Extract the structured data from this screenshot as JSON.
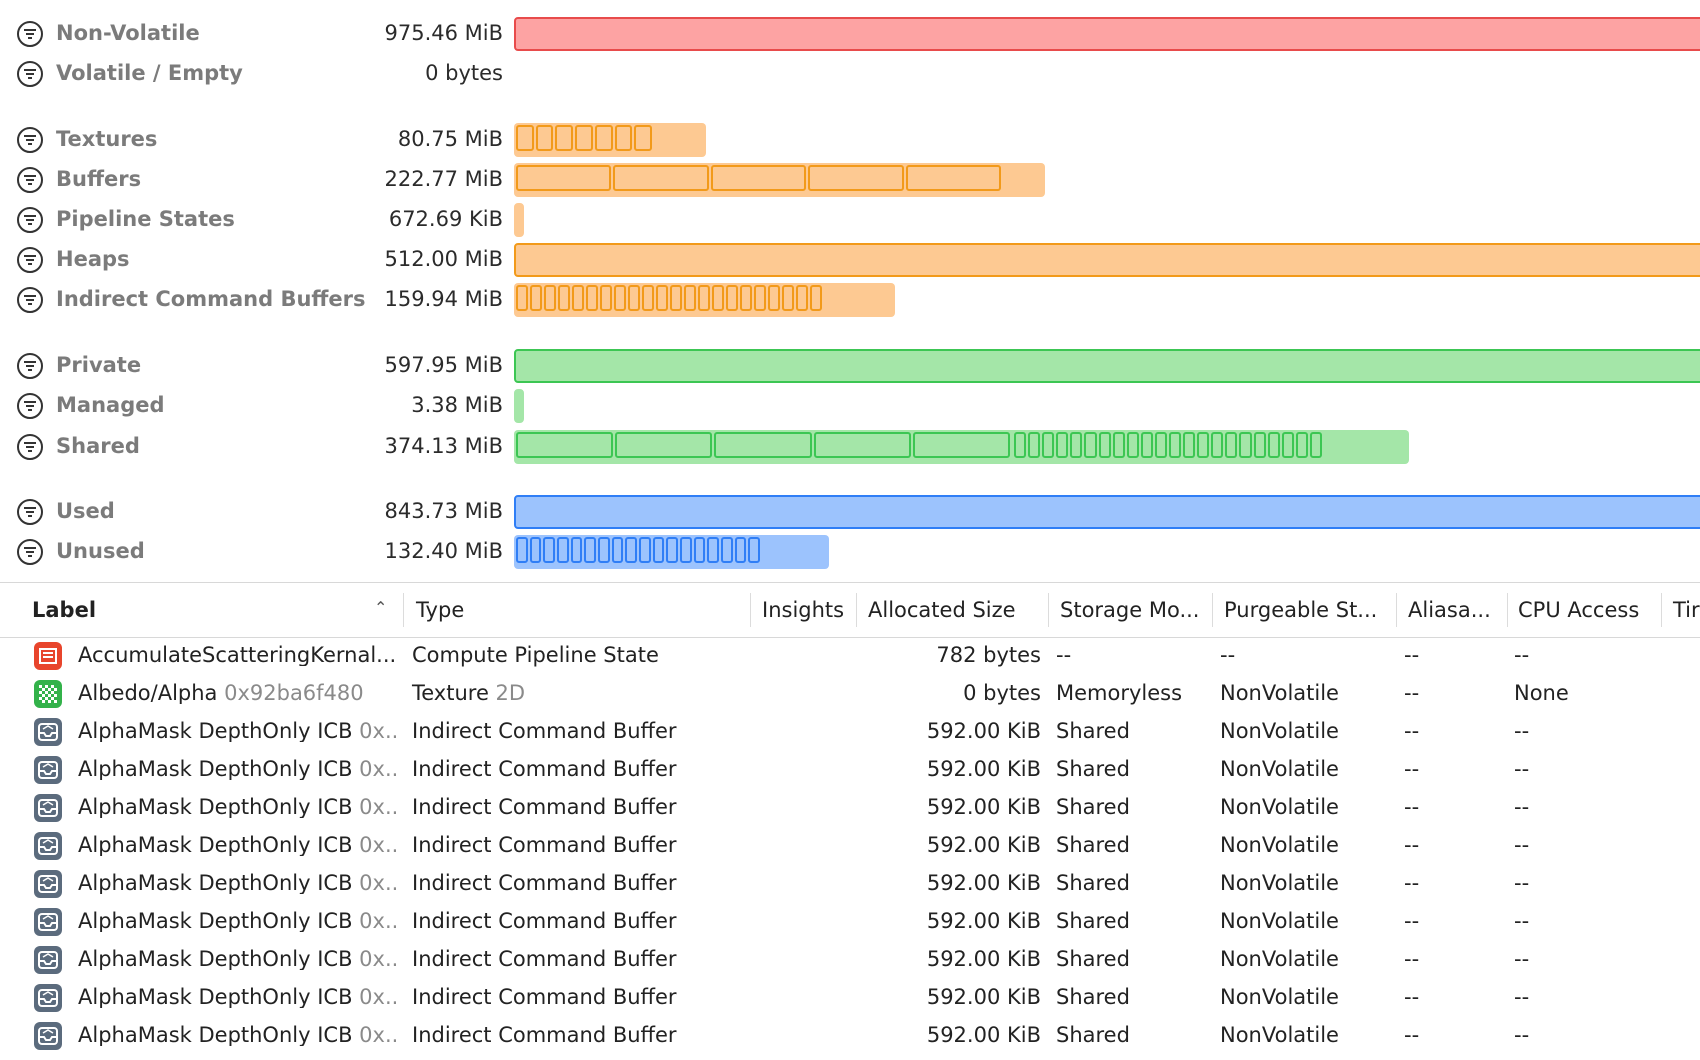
{
  "summary": [
    [
      {
        "label": "Non-Volatile",
        "size": "975.46 MiB"
      },
      {
        "label": "Volatile / Empty",
        "size": "0 bytes"
      }
    ],
    [
      {
        "label": "Textures",
        "size": "80.75 MiB"
      },
      {
        "label": "Buffers",
        "size": "222.77 MiB"
      },
      {
        "label": "Pipeline States",
        "size": "672.69 KiB"
      },
      {
        "label": "Heaps",
        "size": "512.00 MiB"
      },
      {
        "label": "Indirect Command Buffers",
        "size": "159.94 MiB"
      }
    ],
    [
      {
        "label": "Private",
        "size": "597.95 MiB"
      },
      {
        "label": "Managed",
        "size": "3.38 MiB"
      },
      {
        "label": "Shared",
        "size": "374.13 MiB"
      }
    ],
    [
      {
        "label": "Used",
        "size": "843.73 MiB"
      },
      {
        "label": "Unused",
        "size": "132.40 MiB"
      }
    ]
  ],
  "table": {
    "columns": [
      "Label",
      "Type",
      "Insights",
      "Allocated Size",
      "Storage Mo...",
      "Purgeable St...",
      "Aliasa...",
      "CPU Access",
      "Tir"
    ],
    "rows": [
      {
        "label": "AccumulateScatteringKernal...",
        "type": "Compute Pipeline State",
        "size": "782 bytes",
        "storage": "--",
        "purgeable": "--",
        "aliasable": "--",
        "cpu": "--"
      },
      {
        "label": "Albedo/Alpha",
        "address": "0x92ba6f480",
        "type": "Texture",
        "subtype": "2D",
        "size": "0 bytes",
        "storage": "Memoryless",
        "purgeable": "NonVolatile",
        "aliasable": "--",
        "cpu": "None"
      },
      {
        "label": "AlphaMask DepthOnly ICB",
        "address": "0x...",
        "type": "Indirect Command Buffer",
        "size": "592.00 KiB",
        "storage": "Shared",
        "purgeable": "NonVolatile",
        "aliasable": "--",
        "cpu": "--"
      },
      {
        "label": "AlphaMask DepthOnly ICB",
        "address": "0x...",
        "type": "Indirect Command Buffer",
        "size": "592.00 KiB",
        "storage": "Shared",
        "purgeable": "NonVolatile",
        "aliasable": "--",
        "cpu": "--"
      },
      {
        "label": "AlphaMask DepthOnly ICB",
        "address": "0x...",
        "type": "Indirect Command Buffer",
        "size": "592.00 KiB",
        "storage": "Shared",
        "purgeable": "NonVolatile",
        "aliasable": "--",
        "cpu": "--"
      },
      {
        "label": "AlphaMask DepthOnly ICB",
        "address": "0x...",
        "type": "Indirect Command Buffer",
        "size": "592.00 KiB",
        "storage": "Shared",
        "purgeable": "NonVolatile",
        "aliasable": "--",
        "cpu": "--"
      },
      {
        "label": "AlphaMask DepthOnly ICB",
        "address": "0x...",
        "type": "Indirect Command Buffer",
        "size": "592.00 KiB",
        "storage": "Shared",
        "purgeable": "NonVolatile",
        "aliasable": "--",
        "cpu": "--"
      },
      {
        "label": "AlphaMask DepthOnly ICB",
        "address": "0x...",
        "type": "Indirect Command Buffer",
        "size": "592.00 KiB",
        "storage": "Shared",
        "purgeable": "NonVolatile",
        "aliasable": "--",
        "cpu": "--"
      },
      {
        "label": "AlphaMask DepthOnly ICB",
        "address": "0x...",
        "type": "Indirect Command Buffer",
        "size": "592.00 KiB",
        "storage": "Shared",
        "purgeable": "NonVolatile",
        "aliasable": "--",
        "cpu": "--"
      },
      {
        "label": "AlphaMask DepthOnly ICB",
        "address": "0x...",
        "type": "Indirect Command Buffer",
        "size": "592.00 KiB",
        "storage": "Shared",
        "purgeable": "NonVolatile",
        "aliasable": "--",
        "cpu": "--"
      },
      {
        "label": "AlphaMask DepthOnly ICB",
        "address": "0x...",
        "type": "Indirect Command Buffer",
        "size": "592.00 KiB",
        "storage": "Shared",
        "purgeable": "NonVolatile",
        "aliasable": "--",
        "cpu": "--"
      }
    ]
  }
}
